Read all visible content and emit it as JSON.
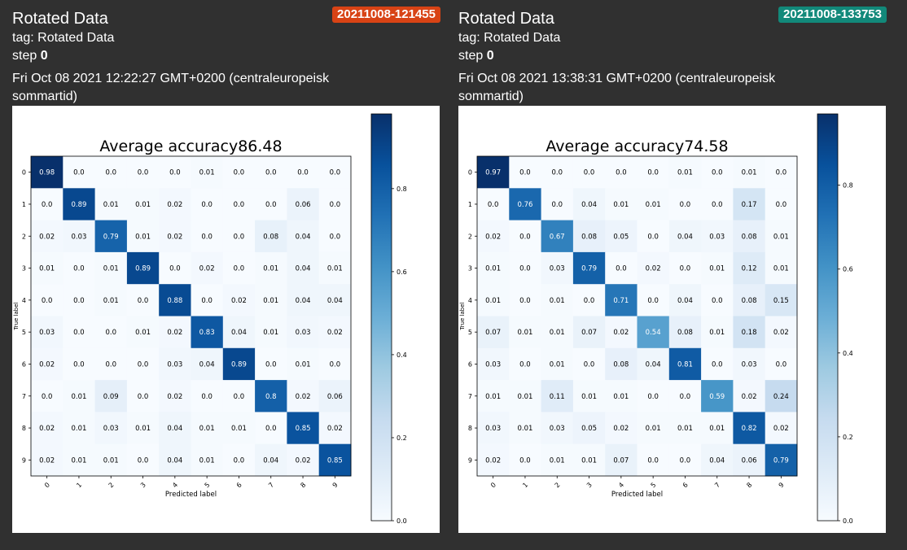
{
  "cards": [
    {
      "title": "Rotated Data",
      "tag": "tag: Rotated Data",
      "step_label": "step",
      "step_value": "0",
      "walltime": "Fri Oct 08 2021 12:22:27 GMT+0200 (centraleuropeisk sommartid)",
      "run": "20211008-121455",
      "run_color": "#d84315",
      "chart_data": {
        "type": "heatmap",
        "title": "Average accuracy86.48",
        "xlabel": "Predicted label",
        "ylabel": "True label",
        "categories": [
          "0",
          "1",
          "2",
          "3",
          "4",
          "5",
          "6",
          "7",
          "8",
          "9"
        ],
        "colorbar_ticks": [
          "0.0",
          "0.2",
          "0.4",
          "0.6",
          "0.8"
        ],
        "colormap": "Blues",
        "values": [
          [
            "0.98",
            "0.0",
            "0.0",
            "0.0",
            "0.0",
            "0.01",
            "0.0",
            "0.0",
            "0.0",
            "0.0"
          ],
          [
            "0.0",
            "0.89",
            "0.01",
            "0.01",
            "0.02",
            "0.0",
            "0.0",
            "0.0",
            "0.06",
            "0.0"
          ],
          [
            "0.02",
            "0.03",
            "0.79",
            "0.01",
            "0.02",
            "0.0",
            "0.0",
            "0.08",
            "0.04",
            "0.0"
          ],
          [
            "0.01",
            "0.0",
            "0.01",
            "0.89",
            "0.0",
            "0.02",
            "0.0",
            "0.01",
            "0.04",
            "0.01"
          ],
          [
            "0.0",
            "0.0",
            "0.01",
            "0.0",
            "0.88",
            "0.0",
            "0.02",
            "0.01",
            "0.04",
            "0.04"
          ],
          [
            "0.03",
            "0.0",
            "0.0",
            "0.01",
            "0.02",
            "0.83",
            "0.04",
            "0.01",
            "0.03",
            "0.02"
          ],
          [
            "0.02",
            "0.0",
            "0.0",
            "0.0",
            "0.03",
            "0.04",
            "0.89",
            "0.0",
            "0.01",
            "0.0"
          ],
          [
            "0.0",
            "0.01",
            "0.09",
            "0.0",
            "0.02",
            "0.0",
            "0.0",
            "0.8",
            "0.02",
            "0.06"
          ],
          [
            "0.02",
            "0.01",
            "0.03",
            "0.01",
            "0.04",
            "0.01",
            "0.01",
            "0.0",
            "0.85",
            "0.02"
          ],
          [
            "0.02",
            "0.01",
            "0.01",
            "0.0",
            "0.04",
            "0.01",
            "0.0",
            "0.04",
            "0.02",
            "0.85"
          ]
        ]
      }
    },
    {
      "title": "Rotated Data",
      "tag": "tag: Rotated Data",
      "step_label": "step",
      "step_value": "0",
      "walltime": "Fri Oct 08 2021 13:38:31 GMT+0200 (centraleuropeisk sommartid)",
      "run": "20211008-133753",
      "run_color": "#12897a",
      "chart_data": {
        "type": "heatmap",
        "title": "Average accuracy74.58",
        "xlabel": "Predicted label",
        "ylabel": "True label",
        "categories": [
          "0",
          "1",
          "2",
          "3",
          "4",
          "5",
          "6",
          "7",
          "8",
          "9"
        ],
        "colorbar_ticks": [
          "0.0",
          "0.2",
          "0.4",
          "0.6",
          "0.8"
        ],
        "colormap": "Blues",
        "values": [
          [
            "0.97",
            "0.0",
            "0.0",
            "0.0",
            "0.0",
            "0.0",
            "0.01",
            "0.0",
            "0.01",
            "0.0"
          ],
          [
            "0.0",
            "0.76",
            "0.0",
            "0.04",
            "0.01",
            "0.01",
            "0.0",
            "0.0",
            "0.17",
            "0.0"
          ],
          [
            "0.02",
            "0.0",
            "0.67",
            "0.08",
            "0.05",
            "0.0",
            "0.04",
            "0.03",
            "0.08",
            "0.01"
          ],
          [
            "0.01",
            "0.0",
            "0.03",
            "0.79",
            "0.0",
            "0.02",
            "0.0",
            "0.01",
            "0.12",
            "0.01"
          ],
          [
            "0.01",
            "0.0",
            "0.01",
            "0.0",
            "0.71",
            "0.0",
            "0.04",
            "0.0",
            "0.08",
            "0.15"
          ],
          [
            "0.07",
            "0.01",
            "0.01",
            "0.07",
            "0.02",
            "0.54",
            "0.08",
            "0.01",
            "0.18",
            "0.02"
          ],
          [
            "0.03",
            "0.0",
            "0.01",
            "0.0",
            "0.08",
            "0.04",
            "0.81",
            "0.0",
            "0.03",
            "0.0"
          ],
          [
            "0.01",
            "0.01",
            "0.11",
            "0.01",
            "0.01",
            "0.0",
            "0.0",
            "0.59",
            "0.02",
            "0.24"
          ],
          [
            "0.03",
            "0.01",
            "0.03",
            "0.05",
            "0.02",
            "0.01",
            "0.01",
            "0.01",
            "0.82",
            "0.02"
          ],
          [
            "0.02",
            "0.0",
            "0.01",
            "0.01",
            "0.07",
            "0.0",
            "0.0",
            "0.04",
            "0.06",
            "0.79"
          ]
        ]
      }
    }
  ]
}
